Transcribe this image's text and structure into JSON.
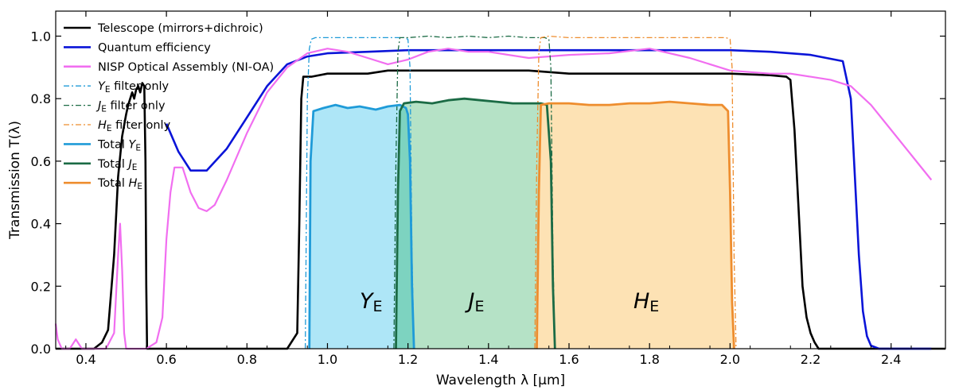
{
  "chart_data": {
    "type": "line",
    "xlabel": "Wavelength λ [μm]",
    "ylabel": "Transmission T(λ)",
    "xlim": [
      0.325,
      2.535
    ],
    "ylim": [
      0,
      1.08
    ],
    "x_ticks": [
      {
        "value": 0.4,
        "label": "0.4"
      },
      {
        "value": 0.6,
        "label": "0.6"
      },
      {
        "value": 0.8,
        "label": "0.8"
      },
      {
        "value": 1.0,
        "label": "1.0"
      },
      {
        "value": 1.2,
        "label": "1.2"
      },
      {
        "value": 1.4,
        "label": "1.4"
      },
      {
        "value": 1.6,
        "label": "1.6"
      },
      {
        "value": 1.8,
        "label": "1.8"
      },
      {
        "value": 2.0,
        "label": "2.0"
      },
      {
        "value": 2.2,
        "label": "2.2"
      },
      {
        "value": 2.4,
        "label": "2.4"
      }
    ],
    "y_ticks": [
      {
        "value": 0.0,
        "label": "0.0"
      },
      {
        "value": 0.2,
        "label": "0.2"
      },
      {
        "value": 0.4,
        "label": "0.4"
      },
      {
        "value": 0.6,
        "label": "0.6"
      },
      {
        "value": 0.8,
        "label": "0.8"
      },
      {
        "value": 1.0,
        "label": "1.0"
      }
    ],
    "legend_position": "top-left",
    "fills": [
      {
        "name": "Total YE area",
        "color": "#aee6f7",
        "x": [
          0.955,
          0.958,
          0.965,
          0.99,
          1.02,
          1.05,
          1.08,
          1.12,
          1.15,
          1.18,
          1.195,
          1.2,
          1.205,
          1.21,
          1.215
        ],
        "y": [
          0.0,
          0.6,
          0.76,
          0.77,
          0.78,
          0.77,
          0.775,
          0.765,
          0.775,
          0.78,
          0.77,
          0.75,
          0.6,
          0.2,
          0.0
        ]
      },
      {
        "name": "Total JE area",
        "color": "#b5e2c6",
        "x": [
          1.17,
          1.175,
          1.18,
          1.19,
          1.22,
          1.26,
          1.3,
          1.34,
          1.38,
          1.42,
          1.46,
          1.5,
          1.53,
          1.545,
          1.555,
          1.56,
          1.565
        ],
        "y": [
          0.0,
          0.5,
          0.76,
          0.785,
          0.79,
          0.785,
          0.795,
          0.8,
          0.795,
          0.79,
          0.785,
          0.785,
          0.785,
          0.78,
          0.6,
          0.2,
          0.0
        ]
      },
      {
        "name": "Total HE area",
        "color": "#fde2b4",
        "x": [
          1.52,
          1.525,
          1.53,
          1.55,
          1.6,
          1.65,
          1.7,
          1.75,
          1.8,
          1.85,
          1.9,
          1.95,
          1.98,
          1.995,
          2.0,
          2.005,
          2.01
        ],
        "y": [
          0.0,
          0.5,
          0.78,
          0.785,
          0.785,
          0.78,
          0.78,
          0.785,
          0.785,
          0.79,
          0.785,
          0.78,
          0.78,
          0.76,
          0.5,
          0.15,
          0.0
        ]
      },
      {
        "name": "YE-JE overlap",
        "color": "#7dd3c0",
        "x": [
          1.17,
          1.175,
          1.18,
          1.19,
          1.2,
          1.205,
          1.21,
          1.215
        ],
        "y": [
          0.0,
          0.5,
          0.76,
          0.77,
          0.75,
          0.6,
          0.2,
          0.0
        ]
      }
    ],
    "series": [
      {
        "name": "Telescope (mirrors+dichroic)",
        "color": "#000000",
        "width": 2.6,
        "dash": "",
        "x": [
          0.325,
          0.42,
          0.44,
          0.455,
          0.47,
          0.48,
          0.49,
          0.5,
          0.505,
          0.51,
          0.515,
          0.52,
          0.525,
          0.53,
          0.535,
          0.54,
          0.545,
          0.548,
          0.55,
          0.552,
          0.555,
          0.58,
          0.7,
          0.9,
          0.925,
          0.93,
          0.935,
          0.94,
          0.96,
          1.0,
          1.05,
          1.1,
          1.15,
          1.2,
          1.25,
          1.3,
          1.35,
          1.4,
          1.5,
          1.6,
          1.7,
          1.8,
          1.9,
          2.0,
          2.1,
          2.14,
          2.15,
          2.16,
          2.17,
          2.18,
          2.19,
          2.2,
          2.21,
          2.22,
          2.535
        ],
        "y": [
          0.0,
          0.0,
          0.02,
          0.06,
          0.3,
          0.55,
          0.68,
          0.75,
          0.78,
          0.8,
          0.82,
          0.8,
          0.83,
          0.84,
          0.82,
          0.85,
          0.84,
          0.6,
          0.2,
          0.0,
          0.0,
          0.0,
          0.0,
          0.0,
          0.05,
          0.4,
          0.8,
          0.87,
          0.87,
          0.88,
          0.88,
          0.88,
          0.89,
          0.89,
          0.89,
          0.89,
          0.89,
          0.89,
          0.89,
          0.88,
          0.88,
          0.88,
          0.88,
          0.88,
          0.875,
          0.87,
          0.86,
          0.7,
          0.45,
          0.2,
          0.1,
          0.05,
          0.02,
          0.0,
          0.0
        ]
      },
      {
        "name": "Quantum efficiency",
        "color": "#0a14d8",
        "width": 2.6,
        "dash": "",
        "x": [
          0.6,
          0.63,
          0.66,
          0.7,
          0.75,
          0.8,
          0.85,
          0.9,
          0.95,
          1.0,
          1.1,
          1.2,
          1.3,
          1.4,
          1.5,
          1.6,
          1.8,
          2.0,
          2.1,
          2.2,
          2.28,
          2.3,
          2.31,
          2.32,
          2.33,
          2.34,
          2.35,
          2.37,
          2.4,
          2.45,
          2.5
        ],
        "y": [
          0.72,
          0.63,
          0.57,
          0.57,
          0.64,
          0.74,
          0.84,
          0.91,
          0.935,
          0.945,
          0.95,
          0.955,
          0.955,
          0.955,
          0.955,
          0.955,
          0.955,
          0.955,
          0.95,
          0.94,
          0.92,
          0.8,
          0.55,
          0.3,
          0.12,
          0.04,
          0.01,
          0.0,
          0.0,
          0.0,
          0.0
        ]
      },
      {
        "name": "NISP Optical Assembly (NI-OA)",
        "color": "#f16ef0",
        "width": 2.2,
        "dash": "",
        "x": [
          0.325,
          0.33,
          0.34,
          0.36,
          0.375,
          0.38,
          0.39,
          0.4,
          0.45,
          0.47,
          0.48,
          0.485,
          0.49,
          0.495,
          0.5,
          0.51,
          0.52,
          0.55,
          0.575,
          0.59,
          0.6,
          0.61,
          0.62,
          0.64,
          0.66,
          0.68,
          0.7,
          0.72,
          0.75,
          0.8,
          0.85,
          0.9,
          0.95,
          1.0,
          1.05,
          1.1,
          1.15,
          1.2,
          1.25,
          1.3,
          1.35,
          1.4,
          1.5,
          1.6,
          1.7,
          1.8,
          1.9,
          2.0,
          2.1,
          2.15,
          2.2,
          2.25,
          2.3,
          2.35,
          2.4,
          2.45,
          2.5
        ],
        "y": [
          0.08,
          0.03,
          0.0,
          0.0,
          0.03,
          0.02,
          0.0,
          0.0,
          0.0,
          0.05,
          0.3,
          0.4,
          0.25,
          0.05,
          0.0,
          0.0,
          0.0,
          0.0,
          0.02,
          0.1,
          0.35,
          0.5,
          0.58,
          0.58,
          0.5,
          0.45,
          0.44,
          0.46,
          0.54,
          0.69,
          0.82,
          0.9,
          0.945,
          0.96,
          0.95,
          0.93,
          0.91,
          0.925,
          0.95,
          0.96,
          0.95,
          0.95,
          0.93,
          0.94,
          0.945,
          0.96,
          0.93,
          0.89,
          0.88,
          0.88,
          0.87,
          0.86,
          0.84,
          0.78,
          0.7,
          0.62,
          0.54
        ]
      },
      {
        "name": "YE filter only",
        "color": "#1f9bd8",
        "width": 1.3,
        "dash": "7,3,2,3",
        "x": [
          0.945,
          0.95,
          0.955,
          0.96,
          0.97,
          1.0,
          1.05,
          1.1,
          1.15,
          1.19,
          1.2,
          1.205,
          1.21,
          1.215
        ],
        "y": [
          0.0,
          0.8,
          0.96,
          0.99,
          0.995,
          0.995,
          0.995,
          0.995,
          0.995,
          0.995,
          0.99,
          0.9,
          0.3,
          0.0
        ]
      },
      {
        "name": "JE filter only",
        "color": "#1b6b45",
        "width": 1.3,
        "dash": "7,3,2,3",
        "x": [
          1.165,
          1.17,
          1.175,
          1.18,
          1.2,
          1.25,
          1.3,
          1.35,
          1.4,
          1.45,
          1.5,
          1.54,
          1.55,
          1.555,
          1.56,
          1.565
        ],
        "y": [
          0.0,
          0.6,
          0.95,
          0.995,
          0.995,
          1.0,
          0.995,
          1.0,
          0.995,
          1.0,
          0.995,
          0.995,
          0.99,
          0.9,
          0.3,
          0.0
        ]
      },
      {
        "name": "HE filter only",
        "color": "#ee8d2e",
        "width": 1.3,
        "dash": "7,3,2,3",
        "x": [
          1.515,
          1.52,
          1.525,
          1.53,
          1.55,
          1.6,
          1.7,
          1.8,
          1.9,
          1.99,
          2.0,
          2.005,
          2.01,
          2.015
        ],
        "y": [
          0.0,
          0.6,
          0.95,
          0.995,
          1.0,
          0.995,
          0.995,
          0.995,
          0.995,
          0.995,
          0.99,
          0.9,
          0.3,
          0.0
        ]
      },
      {
        "name": "Total YE",
        "color": "#1f9bd8",
        "width": 2.8,
        "dash": "",
        "x": [
          0.955,
          0.958,
          0.965,
          0.99,
          1.02,
          1.05,
          1.08,
          1.12,
          1.15,
          1.18,
          1.195,
          1.2,
          1.205,
          1.21,
          1.215
        ],
        "y": [
          0.0,
          0.6,
          0.76,
          0.77,
          0.78,
          0.77,
          0.775,
          0.765,
          0.775,
          0.78,
          0.77,
          0.75,
          0.6,
          0.2,
          0.0
        ]
      },
      {
        "name": "Total JE",
        "color": "#1b6b45",
        "width": 2.8,
        "dash": "",
        "x": [
          1.17,
          1.175,
          1.18,
          1.19,
          1.22,
          1.26,
          1.3,
          1.34,
          1.38,
          1.42,
          1.46,
          1.5,
          1.53,
          1.545,
          1.555,
          1.56,
          1.565
        ],
        "y": [
          0.0,
          0.5,
          0.76,
          0.785,
          0.79,
          0.785,
          0.795,
          0.8,
          0.795,
          0.79,
          0.785,
          0.785,
          0.785,
          0.78,
          0.6,
          0.2,
          0.0
        ]
      },
      {
        "name": "Total HE",
        "color": "#ee8d2e",
        "width": 2.8,
        "dash": "",
        "x": [
          1.52,
          1.525,
          1.53,
          1.55,
          1.6,
          1.65,
          1.7,
          1.75,
          1.8,
          1.85,
          1.9,
          1.95,
          1.98,
          1.995,
          2.0,
          2.005,
          2.01
        ],
        "y": [
          0.0,
          0.5,
          0.78,
          0.785,
          0.785,
          0.78,
          0.78,
          0.785,
          0.785,
          0.79,
          0.785,
          0.78,
          0.78,
          0.76,
          0.5,
          0.15,
          0.0
        ]
      }
    ],
    "legend": [
      {
        "label": "Telescope (mirrors+dichroic)",
        "color": "#000000",
        "style": "solid"
      },
      {
        "label": "Quantum efficiency",
        "color": "#0a14d8",
        "style": "solid"
      },
      {
        "label": "NISP Optical Assembly (NI-OA)",
        "color": "#f16ef0",
        "style": "solid"
      },
      {
        "label_sym": "Y",
        "label_sub": "E",
        "label_rest": " filter only",
        "color": "#1f9bd8",
        "style": "dashdot"
      },
      {
        "label_sym": "J",
        "label_sub": "E",
        "label_rest": " filter only",
        "color": "#1b6b45",
        "style": "dashdot"
      },
      {
        "label_sym": "H",
        "label_sub": "E",
        "label_rest": " filter only",
        "color": "#ee8d2e",
        "style": "dashdot"
      },
      {
        "label_pre": "Total ",
        "label_sym": "Y",
        "label_sub": "E",
        "color": "#1f9bd8",
        "style": "solid"
      },
      {
        "label_pre": "Total ",
        "label_sym": "J",
        "label_sub": "E",
        "color": "#1b6b45",
        "style": "solid"
      },
      {
        "label_pre": "Total ",
        "label_sym": "H",
        "label_sub": "E",
        "color": "#ee8d2e",
        "style": "solid"
      }
    ],
    "band_labels": [
      {
        "sym": "Y",
        "sub": "E",
        "x": 1.08,
        "y": 0.13
      },
      {
        "sym": "J",
        "sub": "E",
        "x": 1.35,
        "y": 0.13
      },
      {
        "sym": "H",
        "sub": "E",
        "x": 1.76,
        "y": 0.13
      }
    ]
  }
}
